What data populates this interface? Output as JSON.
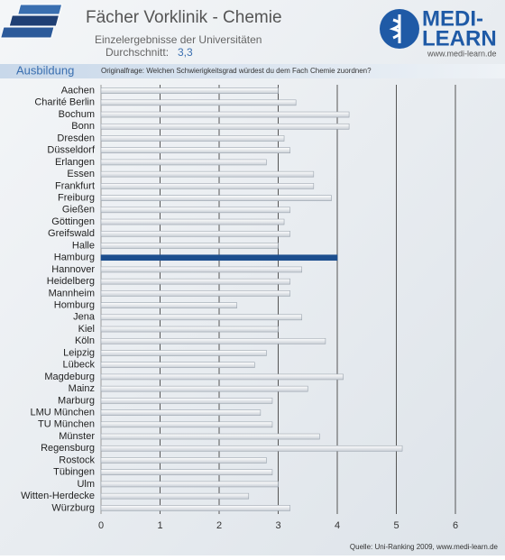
{
  "chart_data": {
    "type": "bar",
    "orientation": "horizontal",
    "title": "Fächer Vorklinik - Chemie",
    "subtitle": "Einzelergebnisse der Universitäten",
    "average_label": "Durchschnitt:",
    "average_value": "3,3",
    "section": "Ausbildung",
    "question": "Originalfrage: Welchen Schwierigkeitsgrad würdest du dem Fach Chemie zuordnen?",
    "logo_line1": "MEDI-",
    "logo_line2": "LEARN",
    "logo_url": "www.medi-learn.de",
    "source": "Quelle: Uni-Ranking 2009, www.medi-learn.de",
    "categories": [
      "Aachen",
      "Charité Berlin",
      "Bochum",
      "Bonn",
      "Dresden",
      "Düsseldorf",
      "Erlangen",
      "Essen",
      "Frankfurt",
      "Freiburg",
      "Gießen",
      "Göttingen",
      "Greifswald",
      "Halle",
      "Hamburg",
      "Hannover",
      "Heidelberg",
      "Mannheim",
      "Homburg",
      "Jena",
      "Kiel",
      "Köln",
      "Leipzig",
      "Lübeck",
      "Magdeburg",
      "Mainz",
      "Marburg",
      "LMU München",
      "TU München",
      "Münster",
      "Regensburg",
      "Rostock",
      "Tübingen",
      "Ulm",
      "Witten-Herdecke",
      "Würzburg"
    ],
    "values": [
      3.0,
      3.3,
      4.2,
      4.2,
      3.1,
      3.2,
      2.8,
      3.6,
      3.6,
      3.9,
      3.2,
      3.1,
      3.2,
      3.0,
      4.0,
      3.4,
      3.2,
      3.2,
      2.3,
      3.4,
      3.0,
      3.8,
      2.8,
      2.6,
      4.1,
      3.5,
      2.9,
      2.7,
      2.9,
      3.7,
      5.1,
      2.8,
      2.9,
      3.0,
      2.5,
      3.2
    ],
    "color": "#e4e8ec",
    "highlight_index": 14,
    "highlight_color": "#1c4e8e",
    "xlim": [
      0,
      6
    ],
    "xticks": [
      0,
      1,
      2,
      3,
      4,
      5,
      6
    ],
    "grid": true
  }
}
